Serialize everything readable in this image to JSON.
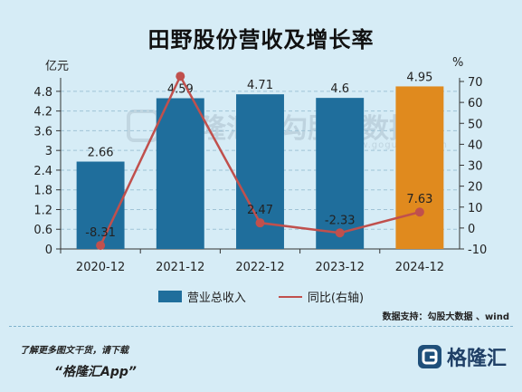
{
  "title": "田野股份营收及增长率",
  "unit_left": "亿元",
  "unit_right": "%",
  "chart_data": {
    "type": "bar",
    "categories": [
      "2020-12",
      "2021-12",
      "2022-12",
      "2023-12",
      "2024-12"
    ],
    "series": [
      {
        "name": "营业总收入",
        "type": "bar",
        "axis": "left",
        "values": [
          2.66,
          4.59,
          4.71,
          4.6,
          4.95
        ],
        "labels": [
          "2.66",
          "4.59",
          "4.71",
          "4.6",
          "4.95"
        ]
      },
      {
        "name": "同比(右轴)",
        "type": "line",
        "axis": "right",
        "values": [
          -8.31,
          72.5,
          2.47,
          -2.33,
          7.63
        ],
        "labels": [
          "-8.31",
          "",
          "2.47",
          "-2.33",
          "7.63"
        ]
      }
    ],
    "y_left": {
      "min": 0,
      "max": 5.1,
      "ticks": [
        "0",
        "0.6",
        "1.2",
        "1.8",
        "2.4",
        "3",
        "3.6",
        "4.2",
        "4.8"
      ]
    },
    "y_right": {
      "min": -10,
      "max": 70,
      "ticks": [
        "-10",
        "0",
        "10",
        "20",
        "30",
        "40",
        "50",
        "60",
        "70"
      ]
    },
    "grid": true,
    "legend_position": "bottom-center",
    "highlight_index": 4
  },
  "colors": {
    "bar": "#1f6e9c",
    "bar_highlight": "#e08a1e",
    "line": "#c0504d",
    "background": "#d6ecf6"
  },
  "source": "数据支持：勾股大数据 、wind",
  "watermark": {
    "brand": "格隆汇",
    "brand2": "勾股大数据",
    "url": "www.gogudata.com"
  },
  "footer": {
    "line1": "了解更多图文干货，请下载",
    "line2": "“格隆汇App”",
    "logo_text": "格隆汇"
  }
}
